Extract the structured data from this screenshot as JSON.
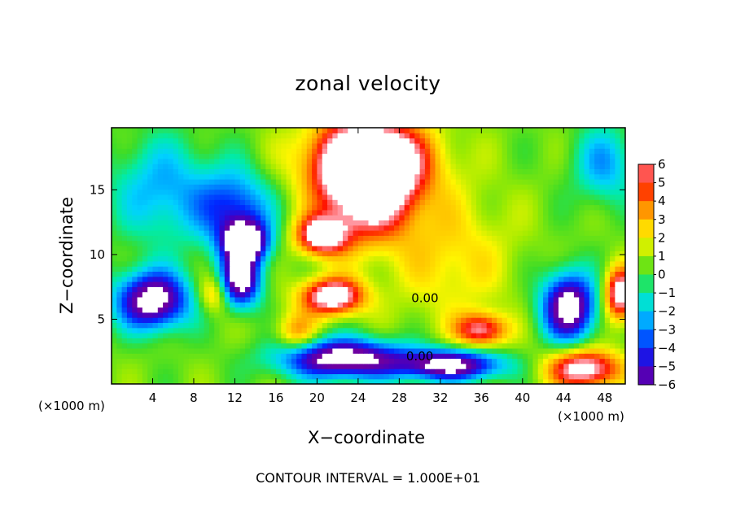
{
  "chart_data": {
    "type": "heatmap",
    "title": "zonal velocity",
    "xlabel": "X−coordinate",
    "ylabel": "Z−coordinate",
    "x_unit": "(×1000 m)",
    "x_ticks": [
      4,
      8,
      12,
      16,
      20,
      24,
      28,
      32,
      36,
      40,
      44,
      48
    ],
    "y_ticks": [
      5,
      10,
      15
    ],
    "xlim": [
      0,
      50
    ],
    "ylim": [
      0,
      19.8
    ],
    "colorbar": {
      "ticks": [
        6,
        5,
        4,
        3,
        2,
        1,
        0,
        -1,
        -2,
        -3,
        -4,
        -5,
        -6
      ],
      "tick_labels": [
        "6",
        "5",
        "4",
        "3",
        "2",
        "1",
        "0",
        "−1",
        "−2",
        "−3",
        "−4",
        "−5",
        "−6"
      ],
      "range": [
        -6,
        6
      ]
    },
    "contour_labels": [
      "0.00",
      "0.00"
    ],
    "annotation": "CONTOUR INTERVAL = 1.000E+01",
    "features": [
      {
        "x": 4,
        "y": 6.5,
        "value": -8,
        "radius": [
          3.5,
          2.2
        ]
      },
      {
        "x": 13,
        "y": 11,
        "value": -8,
        "radius": [
          2.2,
          1.6
        ]
      },
      {
        "x": 12.5,
        "y": 8,
        "value": -7.5,
        "radius": [
          2.0,
          2.0
        ]
      },
      {
        "x": 12,
        "y": 13.5,
        "value": -4.5,
        "radius": [
          3.5,
          3.0
        ]
      },
      {
        "x": 5,
        "y": 15,
        "value": -3,
        "radius": [
          5,
          4
        ]
      },
      {
        "x": 25,
        "y": 15.5,
        "value": 8.5,
        "radius": [
          4.5,
          4
        ]
      },
      {
        "x": 20.5,
        "y": 11.5,
        "value": 7,
        "radius": [
          2.5,
          1.5
        ]
      },
      {
        "x": 25,
        "y": 17.5,
        "value": 6,
        "radius": [
          6,
          3
        ]
      },
      {
        "x": 21.5,
        "y": 6.8,
        "value": 7.5,
        "radius": [
          3,
          1.4
        ]
      },
      {
        "x": 22.5,
        "y": 2.0,
        "value": -8,
        "radius": [
          6,
          1.5
        ]
      },
      {
        "x": 33,
        "y": 1.5,
        "value": -7.5,
        "radius": [
          5,
          1.2
        ]
      },
      {
        "x": 36,
        "y": 4.2,
        "value": 5.5,
        "radius": [
          2.5,
          1.3
        ]
      },
      {
        "x": 44.5,
        "y": 6,
        "value": -8,
        "radius": [
          2.6,
          2.6
        ]
      },
      {
        "x": 46,
        "y": 1.2,
        "value": 7,
        "radius": [
          3.5,
          1.5
        ]
      },
      {
        "x": 49.5,
        "y": 7,
        "value": 7,
        "radius": [
          1.5,
          2
        ]
      },
      {
        "x": 48,
        "y": 17,
        "value": -3,
        "radius": [
          3,
          3
        ]
      },
      {
        "x": 10,
        "y": 7,
        "value": 3,
        "radius": [
          1.5,
          1.5
        ]
      },
      {
        "x": 33,
        "y": 10,
        "value": 2,
        "radius": [
          6,
          5
        ]
      },
      {
        "x": 18,
        "y": 4,
        "value": 3,
        "radius": [
          2,
          1.5
        ]
      }
    ]
  }
}
